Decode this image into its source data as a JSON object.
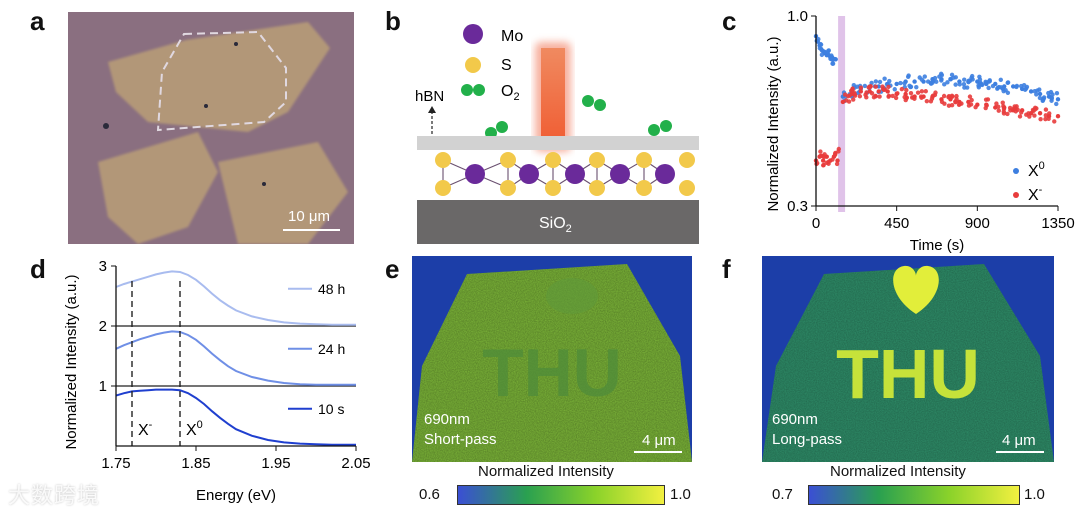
{
  "panels": {
    "a": {
      "label": "a",
      "scale_bar": "10 μm"
    },
    "b": {
      "label": "b",
      "legend": {
        "mo": "Mo",
        "s": "S",
        "o2": "O",
        "o2_sub": "2"
      },
      "hbn": "hBN",
      "substrate": "SiO",
      "substrate_sub": "2"
    },
    "c": {
      "label": "c"
    },
    "d": {
      "label": "d"
    },
    "e": {
      "label": "e",
      "wavelength": "690nm",
      "filter": "Short-pass",
      "scale_bar": "4 μm",
      "colorbar_title": "Normalized Intensity",
      "colorbar_min": "0.6",
      "colorbar_max": "1.0"
    },
    "f": {
      "label": "f",
      "wavelength": "690nm",
      "filter": "Long-pass",
      "scale_bar": "4 μm",
      "colorbar_title": "Normalized Intensity",
      "colorbar_min": "0.7",
      "colorbar_max": "1.0"
    }
  },
  "image_text": "THU",
  "colors": {
    "x0": "#3d7fe0",
    "xminus": "#e83c3c",
    "laser": "#f0603a",
    "mo": "#6a2a9a",
    "s": "#f2c94a",
    "o2": "#22b04a",
    "d_10s": "#1f3fcf",
    "d_24h": "#6f8fe6",
    "d_48h": "#a9bcef"
  },
  "watermark": "大数跨境",
  "chart_data": [
    {
      "type": "scatter",
      "id": "c",
      "title": "",
      "xlabel": "Time (s)",
      "ylabel": "Normalized Intensity (a.u.)",
      "xlim": [
        0,
        1350
      ],
      "ylim": [
        0.3,
        1.0
      ],
      "yscale": "log",
      "xticks": [
        "0",
        "450",
        "900",
        "1350"
      ],
      "yticks": [
        "0.3",
        "1.0"
      ],
      "highlight_x": 140,
      "series": [
        {
          "name": "X",
          "sup": "0",
          "color": "#3d7fe0",
          "x": [
            0,
            10,
            20,
            30,
            40,
            50,
            60,
            70,
            80,
            90,
            100,
            110,
            150,
            200,
            250,
            300,
            350,
            400,
            450,
            500,
            550,
            600,
            650,
            700,
            750,
            800,
            850,
            900,
            950,
            1000,
            1050,
            1100,
            1150,
            1200,
            1250,
            1300,
            1350
          ],
          "y": [
            0.88,
            0.85,
            0.83,
            0.81,
            0.8,
            0.79,
            0.78,
            0.78,
            0.77,
            0.77,
            0.76,
            0.76,
            0.6,
            0.62,
            0.63,
            0.64,
            0.64,
            0.65,
            0.65,
            0.66,
            0.66,
            0.66,
            0.67,
            0.67,
            0.67,
            0.66,
            0.66,
            0.66,
            0.65,
            0.65,
            0.64,
            0.64,
            0.63,
            0.62,
            0.61,
            0.6,
            0.59
          ]
        },
        {
          "name": "X",
          "sup": "-",
          "color": "#e83c3c",
          "x": [
            0,
            20,
            40,
            60,
            80,
            100,
            120,
            150,
            200,
            250,
            300,
            350,
            400,
            450,
            500,
            550,
            600,
            650,
            700,
            750,
            800,
            850,
            900,
            950,
            1000,
            1050,
            1100,
            1150,
            1200,
            1250,
            1300,
            1350
          ],
          "y": [
            0.4,
            0.41,
            0.4,
            0.41,
            0.4,
            0.41,
            0.4,
            0.58,
            0.61,
            0.62,
            0.62,
            0.62,
            0.62,
            0.61,
            0.61,
            0.6,
            0.6,
            0.6,
            0.59,
            0.59,
            0.58,
            0.58,
            0.57,
            0.57,
            0.56,
            0.56,
            0.55,
            0.55,
            0.54,
            0.54,
            0.53,
            0.53
          ]
        }
      ]
    },
    {
      "type": "line",
      "id": "d",
      "xlabel": "Energy (eV)",
      "ylabel": "Normalized Intensity (a.u.)",
      "xlim": [
        1.75,
        2.05
      ],
      "ylim": [
        0,
        3
      ],
      "xticks": [
        "1.75",
        "1.85",
        "1.95",
        "2.05"
      ],
      "yticks": [
        "1",
        "2",
        "3"
      ],
      "markers": [
        {
          "x": 1.77,
          "label": "X",
          "sup": "-"
        },
        {
          "x": 1.83,
          "label": "X",
          "sup": "0"
        }
      ],
      "x": [
        1.75,
        1.76,
        1.77,
        1.78,
        1.79,
        1.8,
        1.81,
        1.82,
        1.83,
        1.84,
        1.85,
        1.86,
        1.87,
        1.88,
        1.89,
        1.9,
        1.92,
        1.94,
        1.96,
        1.98,
        2.0,
        2.02,
        2.05
      ],
      "series": [
        {
          "name": "48 h",
          "color": "#a9bcef",
          "offset": 2,
          "values": [
            0.65,
            0.7,
            0.74,
            0.78,
            0.82,
            0.86,
            0.89,
            0.91,
            0.9,
            0.85,
            0.77,
            0.66,
            0.54,
            0.43,
            0.34,
            0.26,
            0.16,
            0.1,
            0.06,
            0.04,
            0.03,
            0.02,
            0.02
          ]
        },
        {
          "name": "24 h",
          "color": "#6f8fe6",
          "offset": 1,
          "values": [
            0.62,
            0.68,
            0.73,
            0.78,
            0.82,
            0.86,
            0.89,
            0.91,
            0.9,
            0.85,
            0.77,
            0.66,
            0.54,
            0.43,
            0.33,
            0.25,
            0.15,
            0.09,
            0.05,
            0.03,
            0.02,
            0.02,
            0.02
          ]
        },
        {
          "name": "10 s",
          "color": "#1f3fcf",
          "offset": 0,
          "values": [
            0.84,
            0.88,
            0.91,
            0.92,
            0.93,
            0.94,
            0.94,
            0.94,
            0.93,
            0.88,
            0.8,
            0.7,
            0.58,
            0.47,
            0.37,
            0.28,
            0.17,
            0.1,
            0.06,
            0.04,
            0.03,
            0.02,
            0.02
          ]
        }
      ]
    }
  ]
}
